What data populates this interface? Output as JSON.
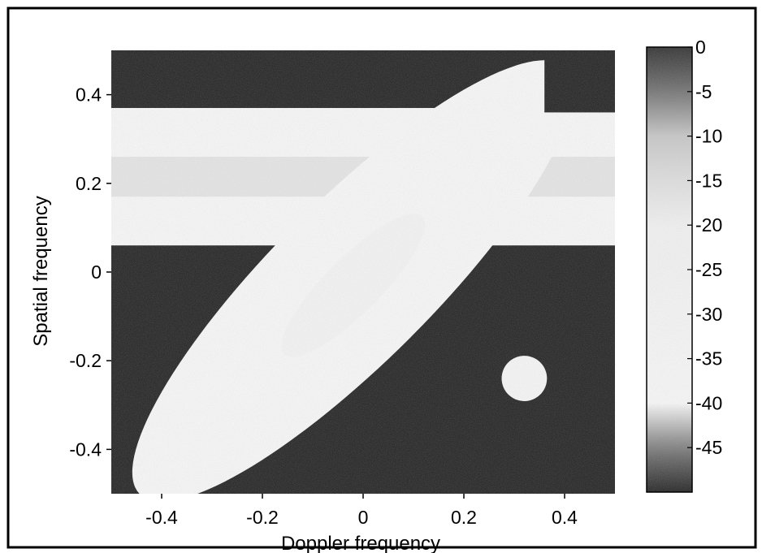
{
  "chart_data": {
    "type": "heatmap",
    "title": "",
    "xlabel": "Doppler frequency",
    "ylabel": "Spatial frequency",
    "xlim": [
      -0.5,
      0.5
    ],
    "ylim": [
      -0.5,
      0.5
    ],
    "x_ticks": [
      -0.4,
      -0.2,
      0,
      0.2,
      0.4
    ],
    "x_tick_labels": [
      "-0.4",
      "-0.2",
      "0",
      "0.2",
      "0.4"
    ],
    "y_ticks": [
      -0.4,
      -0.2,
      0,
      0.2,
      0.4
    ],
    "y_tick_labels": [
      "-0.4",
      "-0.2",
      "0",
      "0.2",
      "0.4"
    ],
    "colorbar": {
      "range": [
        -50,
        0
      ],
      "ticks": [
        0,
        -5,
        -10,
        -15,
        -20,
        -25,
        -30,
        -35,
        -40,
        -45
      ],
      "tick_labels": [
        "0",
        "-5",
        "-10",
        "-15",
        "-20",
        "-25",
        "-30",
        "-35",
        "-40",
        "-45"
      ],
      "colormap": "gray (0 = dark, -40 = light, -50 = dark)"
    },
    "features": [
      {
        "kind": "background",
        "level_db": -50
      },
      {
        "kind": "horizontal-band",
        "y_range": [
          0.06,
          0.37
        ],
        "level_db": -40
      },
      {
        "kind": "horizontal-band-center",
        "y_range": [
          0.17,
          0.26
        ],
        "level_db": -13
      },
      {
        "kind": "diagonal-ellipse",
        "center": [
          -0.02,
          -0.02
        ],
        "semi_axes": [
          0.16,
          0.68
        ],
        "angle_deg": 45,
        "level_db": -40
      },
      {
        "kind": "diagonal-ellipse-core",
        "center": [
          -0.02,
          -0.03
        ],
        "semi_axes": [
          0.055,
          0.22
        ],
        "angle_deg": 45,
        "level_db": -25
      },
      {
        "kind": "blob",
        "center": [
          0.32,
          -0.24
        ],
        "radius": 0.045,
        "level_db": -35
      },
      {
        "kind": "corner-block",
        "x_range": [
          0.36,
          0.5
        ],
        "y_range": [
          0.36,
          0.5
        ],
        "level_db": -50
      }
    ]
  }
}
